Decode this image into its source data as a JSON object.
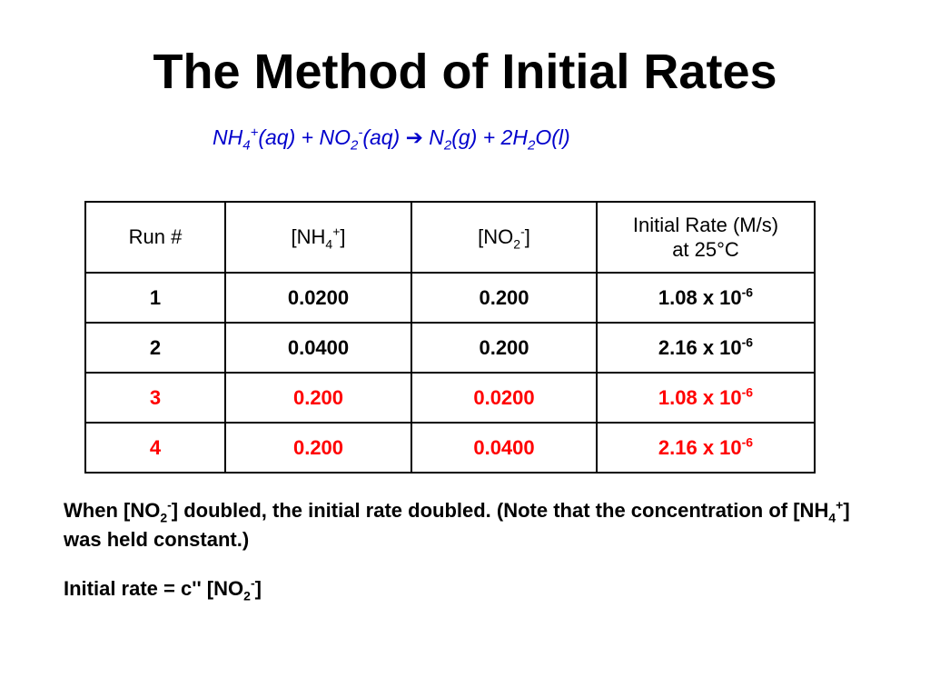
{
  "slide": {
    "title": "The Method of Initial Rates"
  },
  "equation": {
    "nh": "NH",
    "nh_sub": "4",
    "nh_sup": "+",
    "aq1": "(aq) + NO",
    "no_sub": "2",
    "no_sup": "-",
    "aq2": "(aq) ",
    "arrow": "➔",
    "n": " N",
    "n_sub": "2",
    "g": "(g) + 2H",
    "h_sub": "2",
    "end": "O(l)"
  },
  "table": {
    "headers": {
      "run": "Run #",
      "nh_open": "[NH",
      "nh_sub": "4",
      "nh_sup": "+",
      "nh_close": "]",
      "no_open": "[NO",
      "no_sub": "2",
      "no_sup": "-",
      "no_close": "]",
      "rate_line1": "Initial Rate (M/s)",
      "rate_line2": "at 25°C"
    },
    "rows": [
      {
        "run": "1",
        "nh4": "0.0200",
        "no2": "0.200",
        "rate_base": "1.08 x 10",
        "rate_exp": "-6"
      },
      {
        "run": "2",
        "nh4": "0.0400",
        "no2": "0.200",
        "rate_base": "2.16 x 10",
        "rate_exp": "-6"
      },
      {
        "run": "3",
        "nh4": "0.200",
        "no2": "0.0200",
        "rate_base": "1.08 x 10",
        "rate_exp": "-6"
      },
      {
        "run": "4",
        "nh4": "0.200",
        "no2": "0.0400",
        "rate_base": "2.16 x 10",
        "rate_exp": "-6"
      }
    ]
  },
  "note": {
    "p1": "When [NO",
    "sub1": "2",
    "sup1": "-",
    "p2": "] doubled, the initial rate doubled.  (Note that the concentration of [NH",
    "sub2": "4",
    "sup2": "+",
    "p3": "] was held constant.)"
  },
  "formula": {
    "p1": "Initial rate = c'' [NO",
    "sub": "2",
    "sup": "-",
    "p2": "]"
  },
  "colors": {
    "equation": "#0000cc",
    "highlight_rows": "#ff0000"
  }
}
